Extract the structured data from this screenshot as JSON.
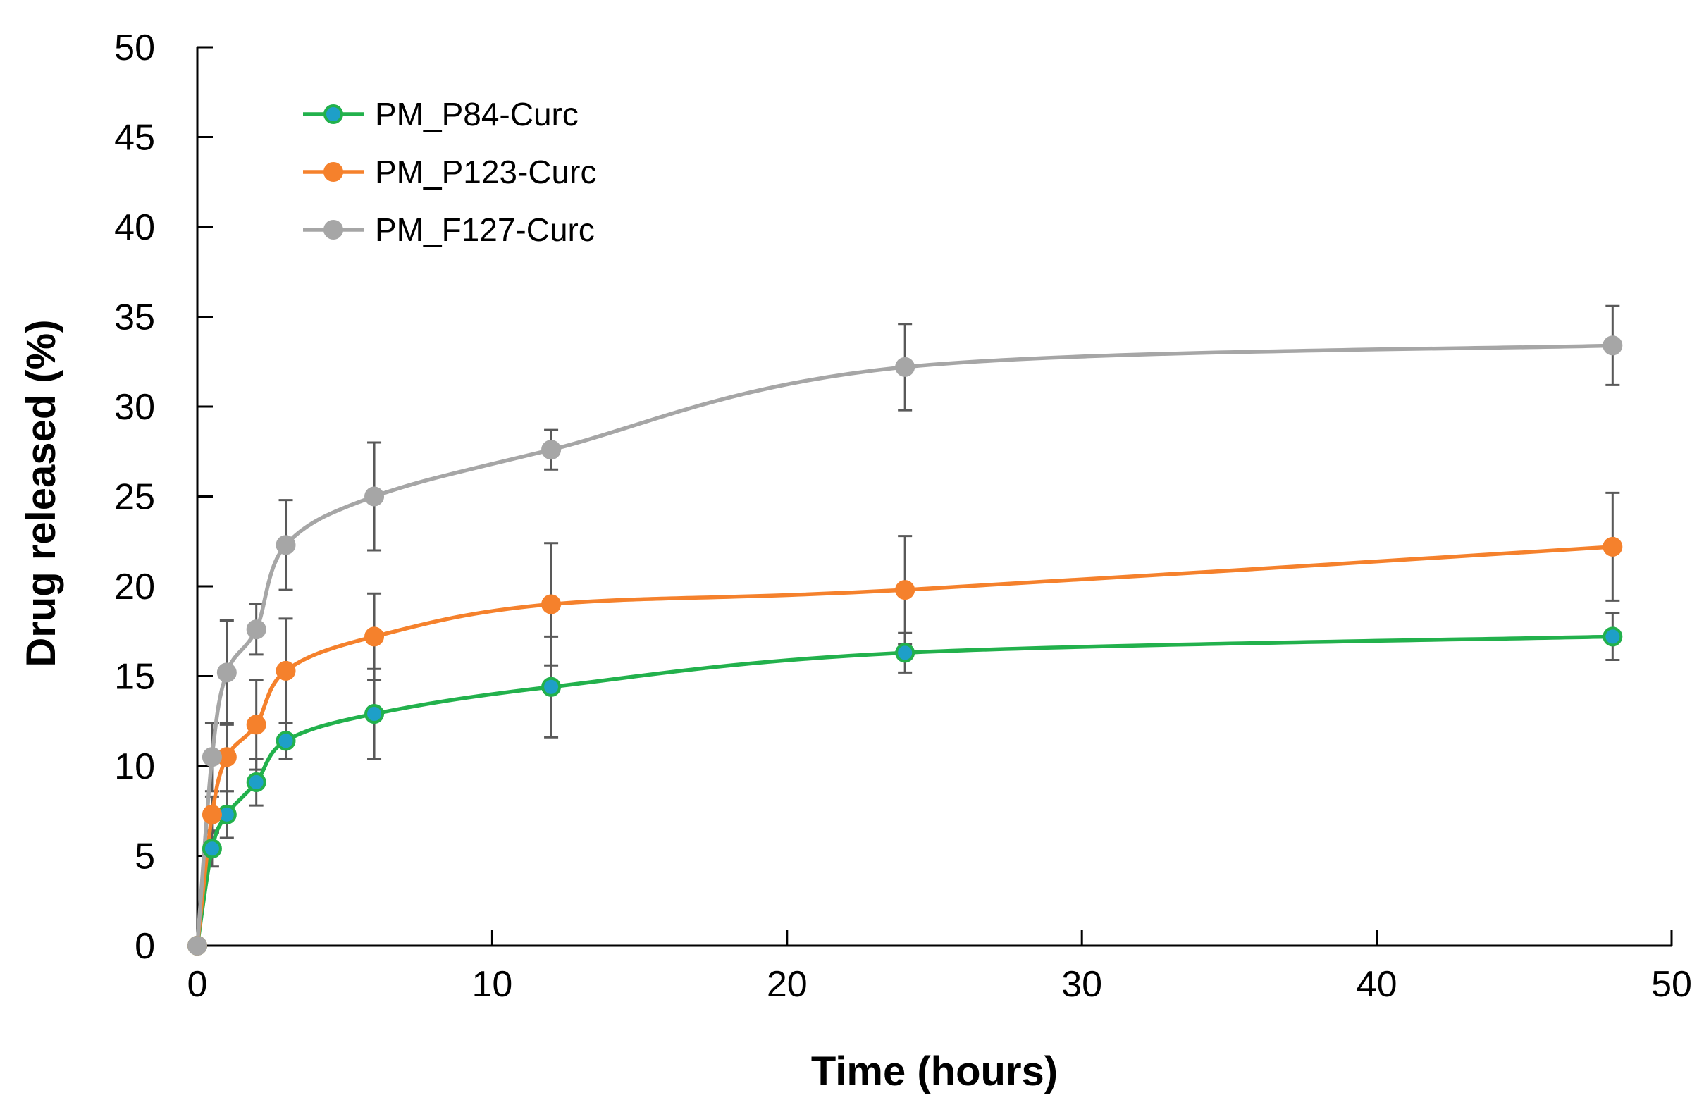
{
  "chart_data": {
    "type": "line",
    "title": "",
    "xlabel": "Time (hours)",
    "ylabel": "Drug released (%)",
    "xlim": [
      0,
      50
    ],
    "ylim": [
      0,
      50
    ],
    "xticks": [
      0,
      10,
      20,
      30,
      40,
      50
    ],
    "yticks": [
      0,
      5,
      10,
      15,
      20,
      25,
      30,
      35,
      40,
      45,
      50
    ],
    "grid": false,
    "legend_position": "top-left",
    "smooth": true,
    "x": [
      0,
      0.5,
      1,
      2,
      3,
      6,
      12,
      24,
      48
    ],
    "series": [
      {
        "name": "PM_P84-Curc",
        "values": [
          0,
          5.4,
          7.3,
          9.1,
          11.4,
          12.9,
          14.4,
          16.3,
          17.2
        ],
        "errors": [
          0,
          1.0,
          1.3,
          1.3,
          1.0,
          2.5,
          2.8,
          1.1,
          1.3
        ],
        "line_color": "#22b14c",
        "marker_color": "#1e9fc8"
      },
      {
        "name": "PM_P123-Curc",
        "values": [
          0,
          7.3,
          10.5,
          12.3,
          15.3,
          17.2,
          19.0,
          19.8,
          22.2
        ],
        "errors": [
          0,
          1.0,
          1.9,
          2.5,
          2.9,
          2.4,
          3.4,
          3.0,
          3.0
        ],
        "line_color": "#f5812c",
        "marker_color": "#f5812c"
      },
      {
        "name": "PM_F127-Curc",
        "values": [
          0,
          10.5,
          15.2,
          17.6,
          22.3,
          25.0,
          27.6,
          32.2,
          33.4
        ],
        "errors": [
          0,
          1.9,
          2.9,
          1.4,
          2.5,
          3.0,
          1.1,
          2.4,
          2.2
        ],
        "line_color": "#a6a6a6",
        "marker_color": "#a6a6a6"
      }
    ],
    "error_bar_color": "#595959",
    "axis_color": "#000000"
  }
}
